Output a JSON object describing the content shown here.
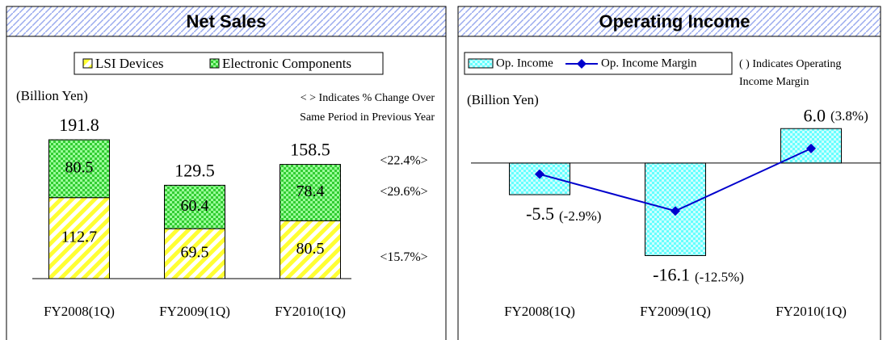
{
  "chart_data": [
    {
      "type": "bar",
      "stacked": true,
      "title": "Net Sales",
      "subtitle": "(Billion Yen)",
      "note": [
        "< > Indicates % Change Over",
        "Same Period in Previous Year"
      ],
      "categories": [
        "FY2008(1Q)",
        "FY2009(1Q)",
        "FY2010(1Q)"
      ],
      "series": [
        {
          "name": "LSI Devices",
          "color": "#ffff33",
          "values": [
            112.7,
            69.5,
            80.5
          ]
        },
        {
          "name": "Electronic Components",
          "color": "#33cc33",
          "values": [
            80.5,
            60.4,
            78.4
          ]
        }
      ],
      "totals": [
        191.8,
        129.5,
        158.5
      ],
      "annotations": [
        "<22.4%>",
        "<29.6%>",
        "<15.7%>"
      ],
      "ylim": [
        0,
        200
      ]
    },
    {
      "type": "bar",
      "title": "Operating Income",
      "subtitle": "(Billion Yen)",
      "note": [
        "( ) Indicates Operating",
        "Income Margin"
      ],
      "categories": [
        "FY2008(1Q)",
        "FY2009(1Q)",
        "FY2010(1Q)"
      ],
      "series": [
        {
          "name": "Op. Income",
          "color": "#66ffff",
          "values": [
            -5.5,
            -16.1,
            6.0
          ],
          "value_labels": [
            "-5.5",
            "-16.1",
            "6.0"
          ]
        },
        {
          "name": "Op. Income Margin",
          "color": "#0000cc",
          "type": "line",
          "axis": "y2",
          "values": [
            -2.9,
            -12.5,
            3.8
          ],
          "value_labels": [
            "(-2.9%)",
            "(-12.5%)",
            "(3.8%)"
          ]
        }
      ],
      "ylim": [
        -18,
        8
      ],
      "y2lim": [
        -27,
        12
      ]
    }
  ]
}
